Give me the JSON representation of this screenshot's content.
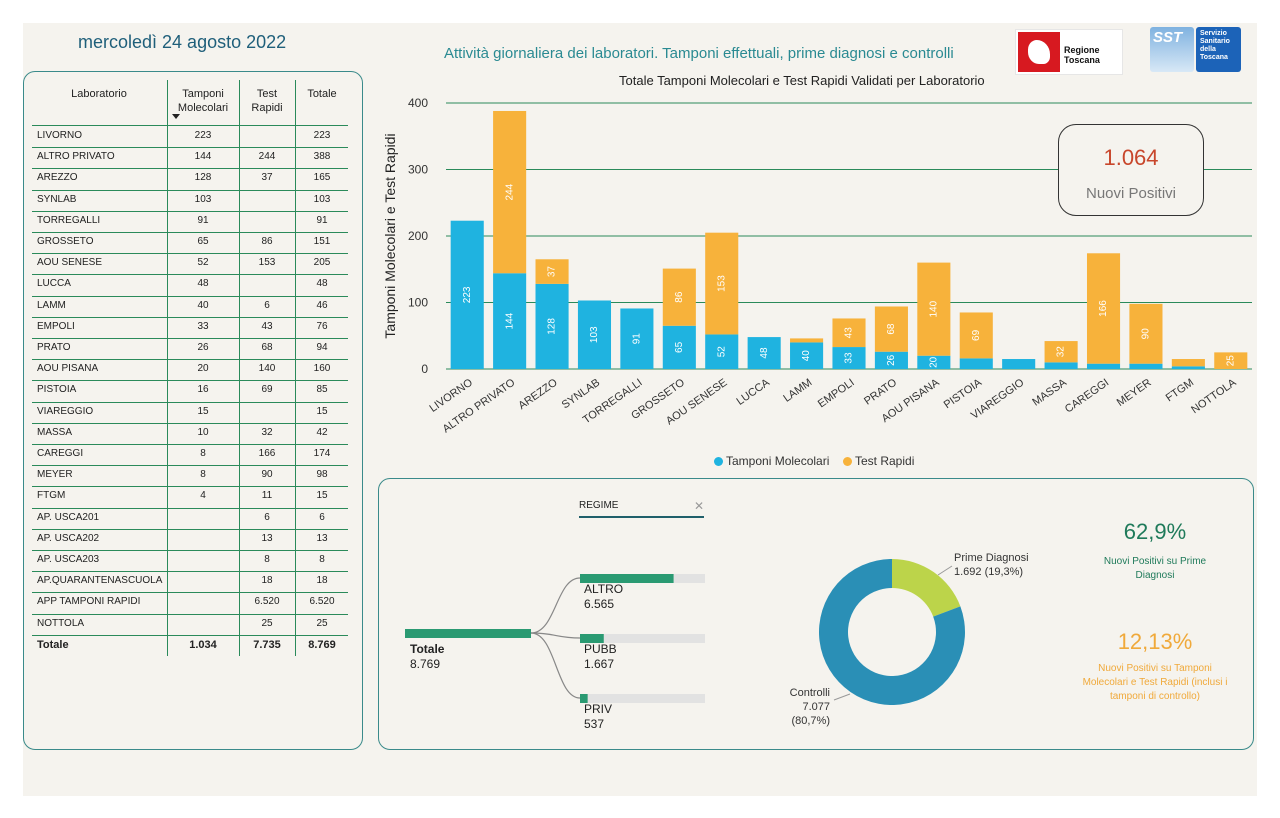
{
  "header": {
    "date": "mercoledì 24 agosto 2022",
    "title": "Attività giornaliera dei laboratori. Tamponi effettuali, prime diagnosi e controlli",
    "logo_rt": "Regione Toscana",
    "logo_sst": "SST",
    "logo_sst_text": "Servizio Sanitario della Toscana"
  },
  "table": {
    "headers": [
      "Laboratorio",
      "Tamponi Molecolari",
      "Test Rapidi",
      "Totale"
    ],
    "rows": [
      [
        "LIVORNO",
        "223",
        "",
        "223"
      ],
      [
        "ALTRO PRIVATO",
        "144",
        "244",
        "388"
      ],
      [
        "AREZZO",
        "128",
        "37",
        "165"
      ],
      [
        "SYNLAB",
        "103",
        "",
        "103"
      ],
      [
        "TORREGALLI",
        "91",
        "",
        "91"
      ],
      [
        "GROSSETO",
        "65",
        "86",
        "151"
      ],
      [
        "AOU SENESE",
        "52",
        "153",
        "205"
      ],
      [
        "LUCCA",
        "48",
        "",
        "48"
      ],
      [
        "LAMM",
        "40",
        "6",
        "46"
      ],
      [
        "EMPOLI",
        "33",
        "43",
        "76"
      ],
      [
        "PRATO",
        "26",
        "68",
        "94"
      ],
      [
        "AOU PISANA",
        "20",
        "140",
        "160"
      ],
      [
        "PISTOIA",
        "16",
        "69",
        "85"
      ],
      [
        "VIAREGGIO",
        "15",
        "",
        "15"
      ],
      [
        "MASSA",
        "10",
        "32",
        "42"
      ],
      [
        "CAREGGI",
        "8",
        "166",
        "174"
      ],
      [
        "MEYER",
        "8",
        "90",
        "98"
      ],
      [
        "FTGM",
        "4",
        "11",
        "15"
      ],
      [
        "AP. USCA201",
        "",
        "6",
        "6"
      ],
      [
        "AP. USCA202",
        "",
        "13",
        "13"
      ],
      [
        "AP. USCA203",
        "",
        "8",
        "8"
      ],
      [
        "AP.QUARANTENASCUOLA",
        "",
        "18",
        "18"
      ],
      [
        "APP TAMPONI RAPIDI",
        "",
        "6.520",
        "6.520"
      ],
      [
        "NOTTOLA",
        "",
        "25",
        "25"
      ]
    ],
    "total": [
      "Totale",
      "1.034",
      "7.735",
      "8.769"
    ]
  },
  "chart_data": {
    "type": "bar",
    "title": "Totale Tamponi Molecolari e Test Rapidi Validati per Laboratorio",
    "ylabel": "Tamponi Molecolari e Test Rapidi",
    "xlabel": "",
    "ylim": [
      0,
      400
    ],
    "yticks": [
      0,
      100,
      200,
      300,
      400
    ],
    "stacked": true,
    "categories": [
      "LIVORNO",
      "ALTRO PRIVATO",
      "AREZZO",
      "SYNLAB",
      "TORREGALLI",
      "GROSSETO",
      "AOU SENESE",
      "LUCCA",
      "LAMM",
      "EMPOLI",
      "PRATO",
      "AOU PISANA",
      "PISTOIA",
      "VIAREGGIO",
      "MASSA",
      "CAREGGI",
      "MEYER",
      "FTGM",
      "NOTTOLA"
    ],
    "series": [
      {
        "name": "Tamponi Molecolari",
        "color": "#1fb3e0",
        "values": [
          223,
          144,
          128,
          103,
          91,
          65,
          52,
          48,
          40,
          33,
          26,
          20,
          16,
          15,
          10,
          8,
          8,
          4,
          0
        ]
      },
      {
        "name": "Test Rapidi",
        "color": "#f7b23b",
        "values": [
          0,
          244,
          37,
          0,
          0,
          86,
          153,
          0,
          6,
          43,
          68,
          140,
          69,
          0,
          32,
          166,
          90,
          11,
          25
        ]
      }
    ],
    "legend": "bottom",
    "grid": true
  },
  "kpi": {
    "value": "1.064",
    "label": "Nuovi Positivi"
  },
  "decomposition": {
    "filter_label": "REGIME",
    "filter_clear": "✕",
    "root": {
      "label": "Totale",
      "value": "8.769"
    },
    "children": [
      {
        "label": "ALTRO",
        "value": "6.565",
        "fraction": 0.7487
      },
      {
        "label": "PUBB",
        "value": "1.667",
        "fraction": 0.1901
      },
      {
        "label": "PRIV",
        "value": "537",
        "fraction": 0.0612
      }
    ]
  },
  "donut": {
    "slices": [
      {
        "label": "Prime Diagnosi",
        "value_text": "1.692 (19,3%)",
        "percent": 19.3,
        "color": "#bcd44a"
      },
      {
        "label": "Controlli",
        "value_text": "7.077 (80,7%)",
        "percent": 80.7,
        "color": "#2a8fb6"
      }
    ]
  },
  "stats": [
    {
      "value": "62,9%",
      "label": "Nuovi Positivi su Prime Diagnosi",
      "color": "#1f7a5a"
    },
    {
      "value": "12,13%",
      "label": "Nuovi Positivi su Tamponi Molecolari e Test Rapidi (inclusi i tamponi di controllo)",
      "color": "#f0a93a"
    }
  ]
}
